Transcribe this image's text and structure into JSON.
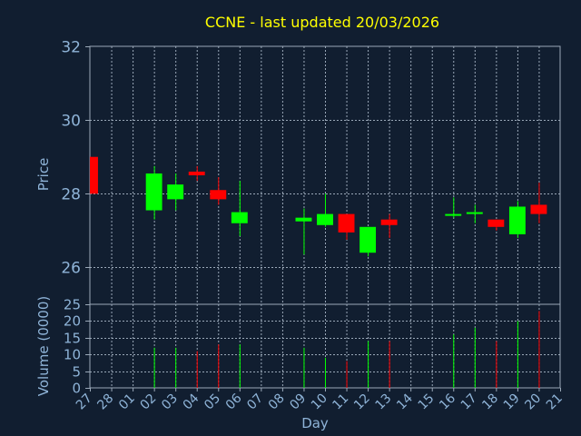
{
  "title": "CCNE - last updated 20/03/2026",
  "colors": {
    "background": "#111e30",
    "title": "#ffff00",
    "axis_text": "#8fb4d8",
    "up": "#00ff00",
    "down": "#ff0000",
    "grid": "#9aa8b8"
  },
  "chart_data": {
    "type": "candlestick",
    "ylabel": "Price",
    "volume_label": "Volume (0000)",
    "xlabel": "Day",
    "price_ylim": [
      25,
      32
    ],
    "price_ticks": [
      26,
      28,
      30,
      32
    ],
    "volume_ylim": [
      0,
      25
    ],
    "volume_ticks": [
      0,
      5,
      10,
      15,
      20,
      25
    ],
    "x_ticks": [
      "27",
      "28",
      "01",
      "02",
      "03",
      "04",
      "05",
      "06",
      "07",
      "08",
      "09",
      "10",
      "11",
      "12",
      "13",
      "14",
      "15",
      "16",
      "17",
      "18",
      "19",
      "20",
      "21"
    ],
    "grid": true,
    "candles": [
      {
        "day": "27",
        "open": 29.0,
        "high": 29.0,
        "low": 28.0,
        "close": 28.0,
        "volume": null
      },
      {
        "day": "02",
        "open": 27.55,
        "high": 28.75,
        "low": 27.3,
        "close": 28.55,
        "volume": 12
      },
      {
        "day": "03",
        "open": 27.85,
        "high": 28.55,
        "low": 27.55,
        "close": 28.25,
        "volume": 12
      },
      {
        "day": "04",
        "open": 28.6,
        "high": 28.75,
        "low": 28.35,
        "close": 28.5,
        "volume": 11
      },
      {
        "day": "05",
        "open": 28.1,
        "high": 28.45,
        "low": 27.7,
        "close": 27.85,
        "volume": 13
      },
      {
        "day": "06",
        "open": 27.2,
        "high": 28.35,
        "low": 26.85,
        "close": 27.5,
        "volume": 13
      },
      {
        "day": "09",
        "open": 27.25,
        "high": 27.6,
        "low": 26.35,
        "close": 27.35,
        "volume": 12
      },
      {
        "day": "10",
        "open": 27.15,
        "high": 28.0,
        "low": 27.1,
        "close": 27.45,
        "volume": 9
      },
      {
        "day": "11",
        "open": 27.45,
        "high": 27.45,
        "low": 26.75,
        "close": 26.95,
        "volume": 8
      },
      {
        "day": "12",
        "open": 26.4,
        "high": 27.1,
        "low": 26.3,
        "close": 27.1,
        "volume": 14
      },
      {
        "day": "13",
        "open": 27.3,
        "high": 27.45,
        "low": 26.8,
        "close": 27.15,
        "volume": 14
      },
      {
        "day": "16",
        "open": 27.4,
        "high": 27.9,
        "low": 27.35,
        "close": 27.45,
        "volume": 16
      },
      {
        "day": "17",
        "open": 27.45,
        "high": 27.7,
        "low": 27.2,
        "close": 27.5,
        "volume": 18
      },
      {
        "day": "18",
        "open": 27.3,
        "high": 27.3,
        "low": 27.0,
        "close": 27.1,
        "volume": 14
      },
      {
        "day": "19",
        "open": 26.9,
        "high": 27.8,
        "low": 26.8,
        "close": 27.65,
        "volume": 20
      },
      {
        "day": "20",
        "open": 27.7,
        "high": 28.3,
        "low": 27.2,
        "close": 27.45,
        "volume": 23
      }
    ]
  }
}
